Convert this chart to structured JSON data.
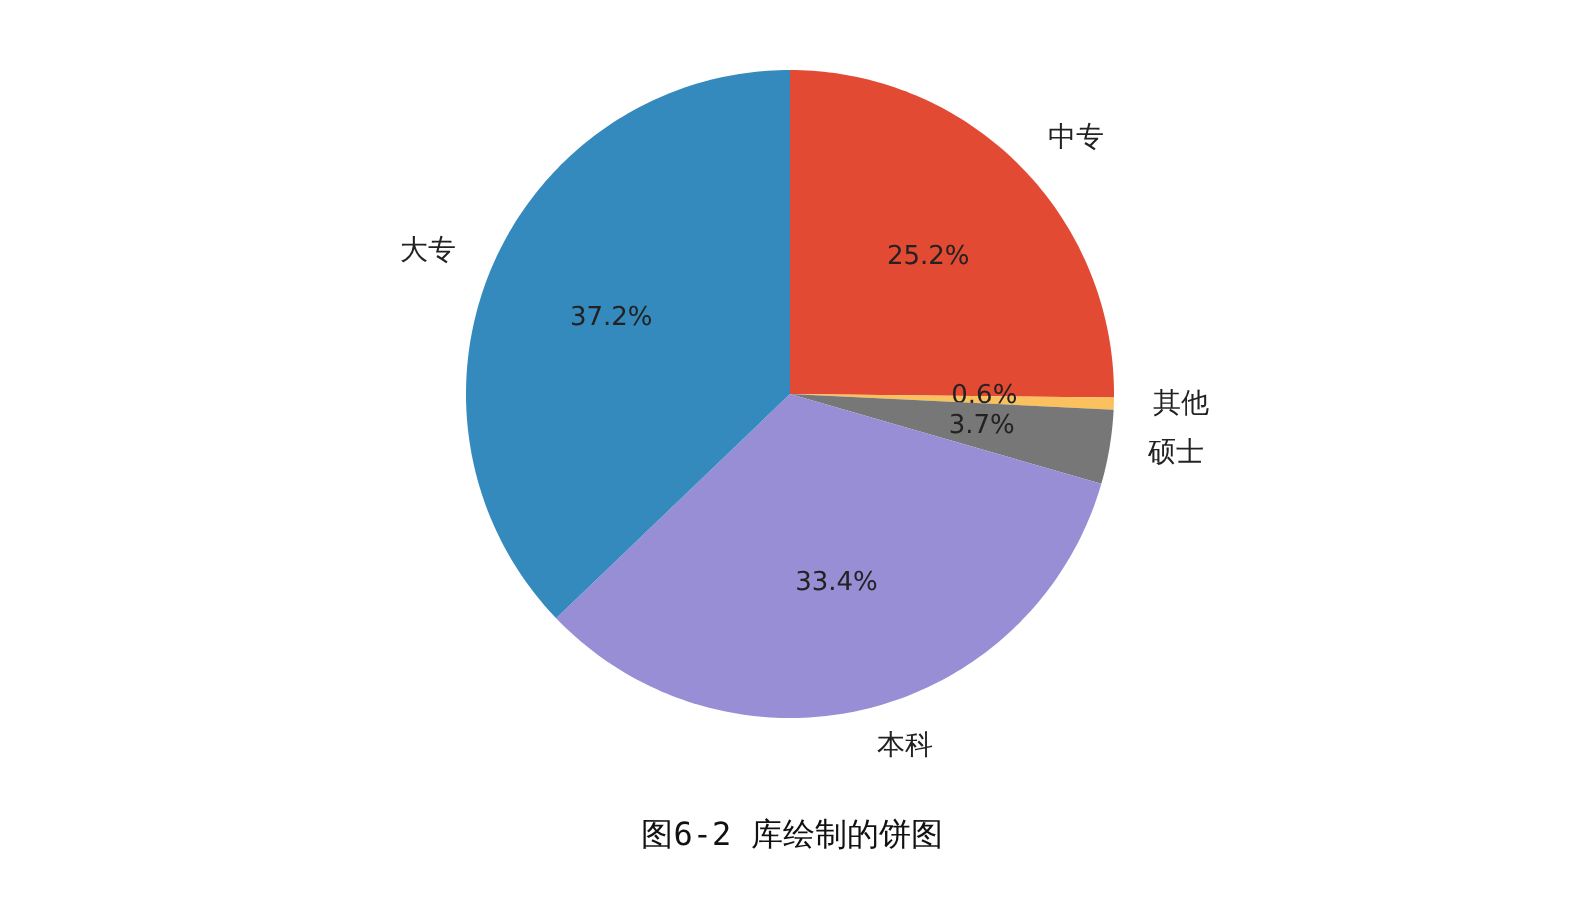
{
  "chart_data": {
    "type": "pie",
    "categories": [
      "中专",
      "其他",
      "硕士",
      "本科",
      "大专"
    ],
    "values": [
      25.2,
      0.6,
      3.7,
      33.4,
      37.2
    ],
    "colors": [
      "#e24a33",
      "#fbc15e",
      "#777777",
      "#988ed5",
      "#348abd"
    ],
    "value_labels": [
      "25.2%",
      "0.6%",
      "3.7%",
      "33.4%",
      "37.2%"
    ],
    "annotations": [
      "图6-2 库绘制的饼图"
    ]
  }
}
